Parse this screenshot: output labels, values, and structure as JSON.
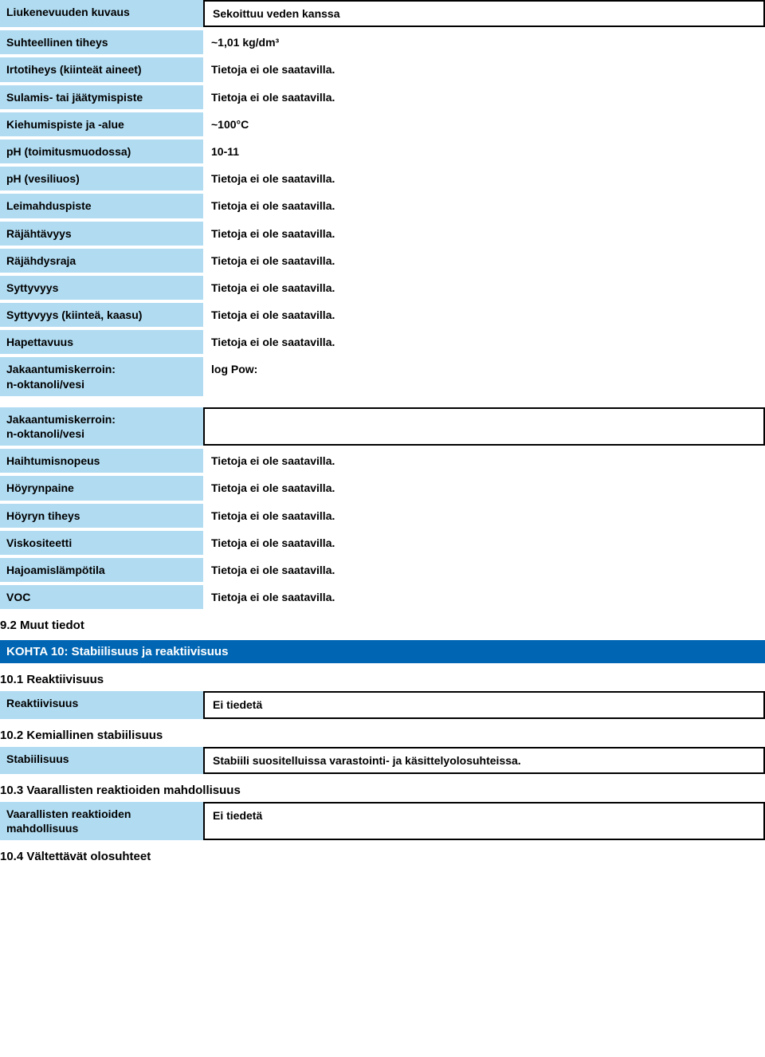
{
  "colors": {
    "label_bg": "#b0dbf1",
    "header_bg": "#0066b3",
    "header_text": "#ffffff",
    "text": "#000000",
    "bg": "#ffffff",
    "border": "#000000"
  },
  "na": "Tietoja ei ole saatavilla.",
  "rows1": [
    {
      "label": "Liukenevuuden kuvaus",
      "value": "Sekoittuu veden kanssa",
      "boxed": true
    },
    {
      "label": "Suhteellinen tiheys",
      "value": "~1,01 kg/dm³"
    },
    {
      "label": "Irtotiheys (kiinteät aineet)",
      "value": "Tietoja ei ole saatavilla."
    },
    {
      "label": "Sulamis- tai jäätymispiste",
      "value": "Tietoja ei ole saatavilla."
    },
    {
      "label": "Kiehumispiste ja -alue",
      "value": "~100°C"
    },
    {
      "label": "pH (toimitusmuodossa)",
      "value": "10-11"
    },
    {
      "label": "pH (vesiliuos)",
      "value": "Tietoja ei ole saatavilla."
    },
    {
      "label": "Leimahduspiste",
      "value": "Tietoja ei ole saatavilla."
    },
    {
      "label": "Räjähtävyys",
      "value": "Tietoja ei ole saatavilla."
    },
    {
      "label": "Räjähdysraja",
      "value": "Tietoja ei ole saatavilla."
    },
    {
      "label": "Syttyvyys",
      "value": "Tietoja ei ole saatavilla."
    },
    {
      "label": "Syttyvyys (kiinteä, kaasu)",
      "value": "Tietoja ei ole saatavilla."
    },
    {
      "label": "Hapettavuus",
      "value": "Tietoja ei ole saatavilla."
    },
    {
      "label": "Jakaantumiskerroin:\nn-oktanoli/vesi",
      "value": "log Pow:",
      "tall": true
    }
  ],
  "rows2": [
    {
      "label": "Jakaantumiskerroin:\nn-oktanoli/vesi",
      "value": "",
      "boxed": true,
      "tall": true
    },
    {
      "label": "Haihtumisnopeus",
      "value": "Tietoja ei ole saatavilla."
    },
    {
      "label": "Höyrynpaine",
      "value": "Tietoja ei ole saatavilla."
    },
    {
      "label": "Höyryn tiheys",
      "value": "Tietoja ei ole saatavilla."
    },
    {
      "label": "Viskositeetti",
      "value": "Tietoja ei ole saatavilla."
    },
    {
      "label": "Hajoamislämpötila",
      "value": "Tietoja ei ole saatavilla."
    },
    {
      "label": "VOC",
      "value": "Tietoja ei ole saatavilla."
    }
  ],
  "sub92": "9.2 Muut tiedot",
  "section10": "KOHTA 10: Stabiilisuus ja reaktiivisuus",
  "sub101": "10.1 Reaktiivisuus",
  "reactivity": {
    "label": "Reaktiivisuus",
    "value": "Ei tiedetä"
  },
  "sub102": "10.2 Kemiallinen stabiilisuus",
  "stability": {
    "label": "Stabiilisuus",
    "value": "Stabiili suositelluissa varastointi- ja käsittelyolosuhteissa."
  },
  "sub103": "10.3 Vaarallisten reaktioiden mahdollisuus",
  "hazreact": {
    "label": "Vaarallisten reaktioiden mahdollisuus",
    "value": "Ei tiedetä"
  },
  "sub104": "10.4 Vältettävät olosuhteet"
}
